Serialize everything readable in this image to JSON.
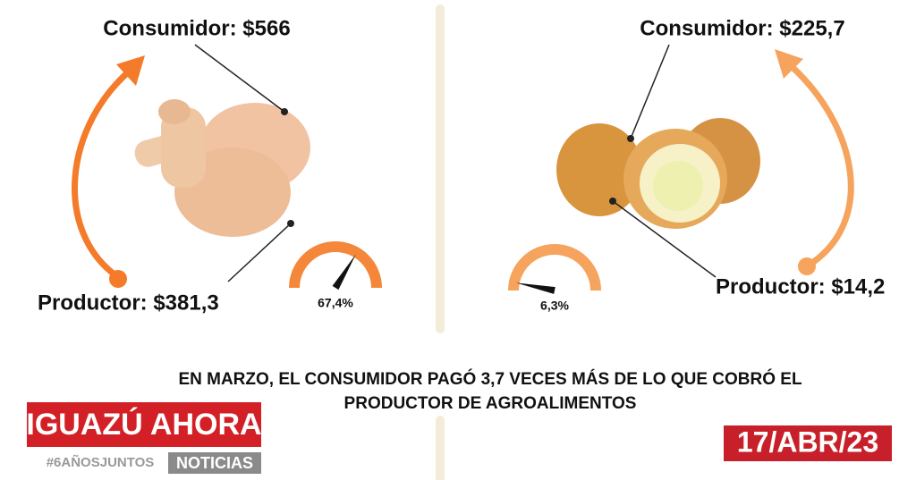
{
  "panels": [
    {
      "consumer": "Consumidor: $566",
      "producer": "Productor: $381,3",
      "gauge": {
        "value": 67.4,
        "label": "67,4%"
      }
    },
    {
      "consumer": "Consumidor: $225,7",
      "producer": "Productor: $14,2",
      "gauge": {
        "value": 6.3,
        "label": "6,3%"
      }
    }
  ],
  "headline": [
    "EN MARZO, EL CONSUMIDOR PAGÓ 3,7 VECES MÁS DE LO QUE COBRÓ EL",
    "PRODUCTOR DE AGROALIMENTOS"
  ],
  "brand": {
    "name": "IGUAZÚ AHORA",
    "tag": "#6AÑOSJUNTOS",
    "section": "NOTICIAS"
  },
  "date": "17/ABR/23"
}
